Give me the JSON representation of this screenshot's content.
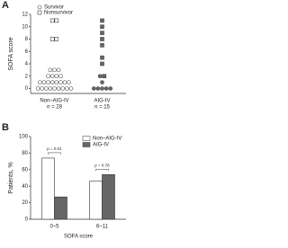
{
  "chart_data": [
    {
      "type": "scatter",
      "panel": "A",
      "ylabel": "SOFA score",
      "categories": [
        "Non–AIG-IV",
        "AIG-IV"
      ],
      "category_notes": [
        "n = 28",
        "n = 15"
      ],
      "category_fills": [
        "#ffffff",
        "#666666"
      ],
      "series": [
        {
          "name": "Survivor",
          "marker": "circle",
          "values": [
            [
              0,
              0,
              0,
              0,
              0,
              0,
              0,
              0,
              0,
              1,
              1,
              1,
              1,
              1,
              1,
              1,
              1,
              2,
              2,
              2,
              2,
              3,
              3,
              3
            ],
            [
              2,
              1,
              0,
              0,
              0,
              0,
              0
            ]
          ]
        },
        {
          "name": "Nonsurvivor",
          "marker": "square",
          "values": [
            [
              11,
              11,
              8,
              8
            ],
            [
              11,
              10,
              9,
              8,
              7,
              5,
              4,
              2
            ]
          ]
        }
      ],
      "ylim": [
        -0.8,
        12
      ],
      "yticks": [
        0,
        2,
        4,
        6,
        8,
        10,
        12
      ],
      "legend": "upper left"
    },
    {
      "type": "bar",
      "panel": "B",
      "ylabel": "Patients, %",
      "xlabel": "SOFA score",
      "categories": [
        "0–5",
        "6–11"
      ],
      "series": [
        {
          "name": "Non–AIG-IV",
          "color": "#ffffff",
          "values": [
            74,
            46
          ]
        },
        {
          "name": "AIG-IV",
          "color": "#666666",
          "values": [
            27,
            54
          ]
        }
      ],
      "annotations": [
        "p = 0.01",
        "p = 0.78"
      ],
      "ylim": [
        0,
        100
      ],
      "yticks": [
        0,
        20,
        40,
        60,
        80,
        100
      ],
      "legend": "upper right"
    }
  ]
}
